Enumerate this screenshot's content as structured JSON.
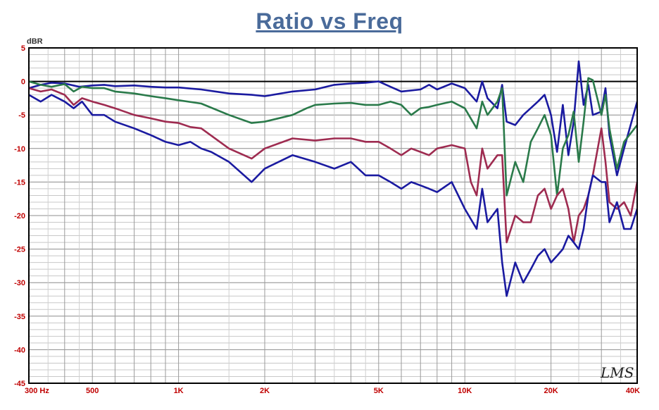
{
  "chart_data": {
    "type": "line",
    "title": "Ratio vs Freq",
    "ylabel": "dBR",
    "xscale": "log",
    "xlim": [
      300,
      40000
    ],
    "ylim": [
      -45,
      5
    ],
    "x_tick_labels": [
      {
        "value": 300,
        "label": "300 Hz"
      },
      {
        "value": 500,
        "label": "500"
      },
      {
        "value": 1000,
        "label": "1K"
      },
      {
        "value": 2000,
        "label": "2K"
      },
      {
        "value": 5000,
        "label": "5K"
      },
      {
        "value": 10000,
        "label": "10K"
      },
      {
        "value": 20000,
        "label": "20K"
      },
      {
        "value": 40000,
        "label": "40K"
      }
    ],
    "y_ticks": [
      5,
      0,
      -5,
      -10,
      -15,
      -20,
      -25,
      -30,
      -35,
      -40,
      -45
    ],
    "grid": true,
    "watermark": "LMS",
    "series": [
      {
        "color": "#1a1aa0",
        "points": [
          [
            300,
            -1
          ],
          [
            330,
            -0.5
          ],
          [
            360,
            -0.2
          ],
          [
            400,
            -0.3
          ],
          [
            450,
            -0.8
          ],
          [
            500,
            -0.6
          ],
          [
            550,
            -0.5
          ],
          [
            600,
            -0.7
          ],
          [
            700,
            -0.6
          ],
          [
            800,
            -0.8
          ],
          [
            900,
            -0.9
          ],
          [
            1000,
            -0.9
          ],
          [
            1200,
            -1.2
          ],
          [
            1500,
            -1.8
          ],
          [
            1800,
            -2
          ],
          [
            2000,
            -2.2
          ],
          [
            2500,
            -1.5
          ],
          [
            3000,
            -1.2
          ],
          [
            3500,
            -0.5
          ],
          [
            4000,
            -0.3
          ],
          [
            4500,
            -0.2
          ],
          [
            5000,
            0
          ],
          [
            5500,
            -0.8
          ],
          [
            6000,
            -1.5
          ],
          [
            7000,
            -1.2
          ],
          [
            7500,
            -0.5
          ],
          [
            8000,
            -1.2
          ],
          [
            9000,
            -0.3
          ],
          [
            10000,
            -1
          ],
          [
            11000,
            -3
          ],
          [
            11500,
            0
          ],
          [
            12000,
            -2.5
          ],
          [
            13000,
            -4
          ],
          [
            13500,
            -0.5
          ],
          [
            14000,
            -6
          ],
          [
            15000,
            -6.5
          ],
          [
            16000,
            -5
          ],
          [
            18000,
            -3
          ],
          [
            19000,
            -2
          ],
          [
            20000,
            -5
          ],
          [
            21000,
            -10.5
          ],
          [
            22000,
            -3.5
          ],
          [
            23000,
            -11
          ],
          [
            24000,
            -6
          ],
          [
            25000,
            3
          ],
          [
            26000,
            -3.5
          ],
          [
            27000,
            -0.5
          ],
          [
            28000,
            -5
          ],
          [
            30000,
            -4.5
          ],
          [
            31000,
            -1
          ],
          [
            32000,
            -8
          ],
          [
            34000,
            -14
          ],
          [
            36000,
            -10
          ],
          [
            40000,
            -3
          ]
        ]
      },
      {
        "color": "#2a7a4a",
        "points": [
          [
            300,
            0
          ],
          [
            330,
            -0.5
          ],
          [
            360,
            -0.8
          ],
          [
            400,
            -0.4
          ],
          [
            430,
            -1.5
          ],
          [
            460,
            -0.8
          ],
          [
            500,
            -1
          ],
          [
            550,
            -1
          ],
          [
            600,
            -1.5
          ],
          [
            700,
            -1.8
          ],
          [
            800,
            -2.2
          ],
          [
            900,
            -2.5
          ],
          [
            1000,
            -2.8
          ],
          [
            1200,
            -3.3
          ],
          [
            1500,
            -5
          ],
          [
            1800,
            -6.2
          ],
          [
            2000,
            -6
          ],
          [
            2500,
            -5
          ],
          [
            2800,
            -4
          ],
          [
            3000,
            -3.5
          ],
          [
            3500,
            -3.3
          ],
          [
            4000,
            -3.2
          ],
          [
            4500,
            -3.5
          ],
          [
            5000,
            -3.5
          ],
          [
            5500,
            -3
          ],
          [
            6000,
            -3.5
          ],
          [
            6500,
            -5
          ],
          [
            7000,
            -4
          ],
          [
            7500,
            -3.8
          ],
          [
            8000,
            -3.5
          ],
          [
            9000,
            -3
          ],
          [
            10000,
            -4
          ],
          [
            11000,
            -7
          ],
          [
            11500,
            -3
          ],
          [
            12000,
            -5
          ],
          [
            13000,
            -3
          ],
          [
            13500,
            -1
          ],
          [
            14000,
            -17
          ],
          [
            15000,
            -12
          ],
          [
            16000,
            -15
          ],
          [
            17000,
            -9
          ],
          [
            18000,
            -7
          ],
          [
            19000,
            -5
          ],
          [
            20000,
            -8
          ],
          [
            21000,
            -17
          ],
          [
            22000,
            -10
          ],
          [
            23000,
            -8
          ],
          [
            24000,
            -4.5
          ],
          [
            25000,
            -12
          ],
          [
            26000,
            -6
          ],
          [
            27000,
            0.5
          ],
          [
            28000,
            0.2
          ],
          [
            30000,
            -5
          ],
          [
            31000,
            -2
          ],
          [
            32000,
            -7
          ],
          [
            34000,
            -13
          ],
          [
            36000,
            -9
          ],
          [
            40000,
            -6.5
          ]
        ]
      },
      {
        "color": "#9e2b50",
        "points": [
          [
            300,
            -1
          ],
          [
            330,
            -1.5
          ],
          [
            360,
            -1.2
          ],
          [
            400,
            -2
          ],
          [
            430,
            -3.5
          ],
          [
            460,
            -2.5
          ],
          [
            500,
            -3
          ],
          [
            550,
            -3.5
          ],
          [
            600,
            -4
          ],
          [
            700,
            -5
          ],
          [
            800,
            -5.5
          ],
          [
            900,
            -6
          ],
          [
            1000,
            -6.2
          ],
          [
            1100,
            -6.8
          ],
          [
            1200,
            -7
          ],
          [
            1500,
            -10
          ],
          [
            1800,
            -11.5
          ],
          [
            2000,
            -10
          ],
          [
            2500,
            -8.5
          ],
          [
            3000,
            -8.8
          ],
          [
            3500,
            -8.5
          ],
          [
            4000,
            -8.5
          ],
          [
            4500,
            -9
          ],
          [
            5000,
            -9
          ],
          [
            5500,
            -10
          ],
          [
            6000,
            -11
          ],
          [
            6500,
            -10
          ],
          [
            7000,
            -10.5
          ],
          [
            7500,
            -11
          ],
          [
            8000,
            -10
          ],
          [
            9000,
            -9.5
          ],
          [
            10000,
            -10
          ],
          [
            10500,
            -15
          ],
          [
            11000,
            -17
          ],
          [
            11500,
            -10
          ],
          [
            12000,
            -13
          ],
          [
            13000,
            -11
          ],
          [
            13500,
            -11
          ],
          [
            14000,
            -24
          ],
          [
            15000,
            -20
          ],
          [
            16000,
            -21
          ],
          [
            17000,
            -21
          ],
          [
            18000,
            -17
          ],
          [
            19000,
            -16
          ],
          [
            20000,
            -19
          ],
          [
            21000,
            -17
          ],
          [
            22000,
            -16
          ],
          [
            23000,
            -19
          ],
          [
            24000,
            -24
          ],
          [
            25000,
            -20
          ],
          [
            26000,
            -19
          ],
          [
            27000,
            -17
          ],
          [
            28000,
            -14
          ],
          [
            30000,
            -7
          ],
          [
            31000,
            -12
          ],
          [
            32000,
            -18
          ],
          [
            34000,
            -19
          ],
          [
            36000,
            -18
          ],
          [
            38000,
            -20
          ],
          [
            40000,
            -15
          ]
        ]
      },
      {
        "color": "#1a1aa0",
        "points": [
          [
            300,
            -2
          ],
          [
            330,
            -3
          ],
          [
            360,
            -2
          ],
          [
            400,
            -3
          ],
          [
            430,
            -4
          ],
          [
            460,
            -3
          ],
          [
            500,
            -5
          ],
          [
            550,
            -5
          ],
          [
            600,
            -6
          ],
          [
            700,
            -7
          ],
          [
            800,
            -8
          ],
          [
            900,
            -9
          ],
          [
            1000,
            -9.5
          ],
          [
            1100,
            -9
          ],
          [
            1200,
            -10
          ],
          [
            1300,
            -10.5
          ],
          [
            1500,
            -12
          ],
          [
            1800,
            -15
          ],
          [
            2000,
            -13
          ],
          [
            2500,
            -11
          ],
          [
            3000,
            -12
          ],
          [
            3500,
            -13
          ],
          [
            4000,
            -12
          ],
          [
            4500,
            -14
          ],
          [
            5000,
            -14
          ],
          [
            5500,
            -15
          ],
          [
            6000,
            -16
          ],
          [
            6500,
            -15
          ],
          [
            7000,
            -15.5
          ],
          [
            7500,
            -16
          ],
          [
            8000,
            -16.5
          ],
          [
            9000,
            -15
          ],
          [
            10000,
            -19
          ],
          [
            11000,
            -22
          ],
          [
            11500,
            -16
          ],
          [
            12000,
            -21
          ],
          [
            13000,
            -19
          ],
          [
            13500,
            -27
          ],
          [
            14000,
            -32
          ],
          [
            15000,
            -27
          ],
          [
            16000,
            -30
          ],
          [
            17000,
            -28
          ],
          [
            18000,
            -26
          ],
          [
            19000,
            -25
          ],
          [
            20000,
            -27
          ],
          [
            21000,
            -26
          ],
          [
            22000,
            -25
          ],
          [
            23000,
            -23
          ],
          [
            24000,
            -24
          ],
          [
            25000,
            -25
          ],
          [
            26000,
            -22
          ],
          [
            27000,
            -17
          ],
          [
            28000,
            -14
          ],
          [
            30000,
            -15
          ],
          [
            31000,
            -15
          ],
          [
            32000,
            -21
          ],
          [
            34000,
            -18
          ],
          [
            36000,
            -22
          ],
          [
            38000,
            -22
          ],
          [
            40000,
            -19
          ]
        ]
      }
    ]
  }
}
